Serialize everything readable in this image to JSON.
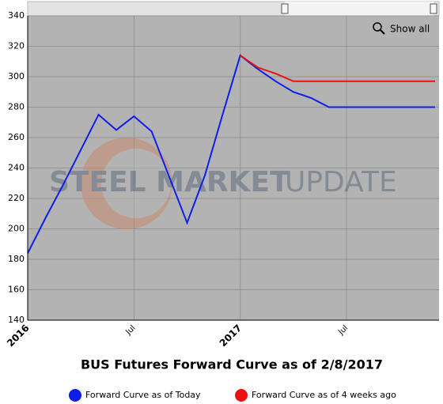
{
  "chart_data": {
    "type": "line",
    "title": "BUS Futures Forward Curve as of 2/8/2017",
    "watermark": {
      "bold": "STEEL MARKET",
      "light": "UPDATE"
    },
    "button": "Show all",
    "x": [
      "2016-01",
      "2016-02",
      "2016-03",
      "2016-04",
      "2016-05",
      "2016-06",
      "2016-07",
      "2016-08",
      "2016-09",
      "2016-10",
      "2016-11",
      "2016-12",
      "2017-01",
      "2017-02",
      "2017-03",
      "2017-04",
      "2017-05",
      "2017-06",
      "2017-07",
      "2017-08",
      "2017-09",
      "2017-10",
      "2017-11",
      "2017-12"
    ],
    "series": [
      {
        "name": "Forward Curve as of Today",
        "color": "#0f1ee8",
        "values": [
          184,
          207,
          229,
          252,
          275,
          265,
          274,
          264,
          234,
          204,
          235,
          275,
          314,
          305,
          297,
          290,
          286,
          280,
          280,
          280,
          280,
          280,
          280,
          280
        ]
      },
      {
        "name": "Forward Curve as of 4 weeks ago",
        "color": "#ee1111",
        "values": [
          null,
          null,
          null,
          null,
          null,
          null,
          null,
          null,
          null,
          null,
          null,
          null,
          314,
          306,
          302,
          297,
          297,
          297,
          297,
          297,
          297,
          297,
          297,
          297
        ]
      }
    ],
    "xlim": [
      "2016-01",
      "2017-12"
    ],
    "xticks": [
      {
        "value": "2016-01",
        "label": "2016"
      },
      {
        "value": "2016-07",
        "label": "Jul"
      },
      {
        "value": "2017-01",
        "label": "2017"
      },
      {
        "value": "2017-07",
        "label": "Jul"
      }
    ],
    "ylim": [
      140,
      340
    ],
    "yticks": [
      140,
      160,
      180,
      200,
      220,
      240,
      260,
      280,
      300,
      320,
      340
    ],
    "grid": true
  }
}
